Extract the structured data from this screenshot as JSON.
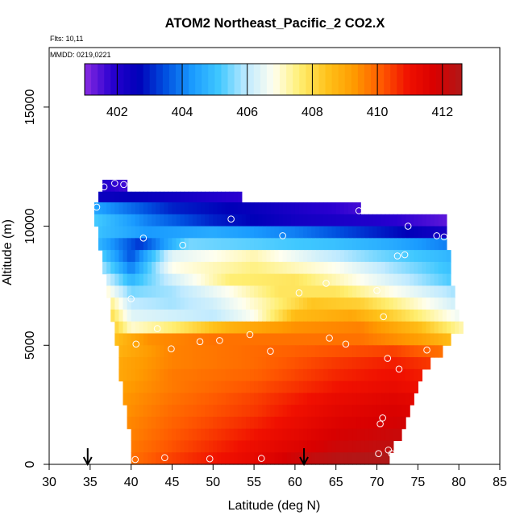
{
  "chart_data": {
    "type": "heatmap",
    "title": "ATOM2 Northeast_Pacific_2 CO2.X",
    "subtitle_flights": "Flts: 10,11",
    "subtitle_dates": "MMDD: 0219,0221",
    "xlabel": "Latitude (deg N)",
    "ylabel": "Altitude (m)",
    "xlim": [
      30,
      85
    ],
    "ylim": [
      0,
      17500
    ],
    "x_ticks": [
      "30",
      "35",
      "40",
      "45",
      "50",
      "55",
      "60",
      "65",
      "70",
      "75",
      "80",
      "85"
    ],
    "x_tick_values": [
      30,
      35,
      40,
      45,
      50,
      55,
      60,
      65,
      70,
      75,
      80,
      85
    ],
    "y_ticks": [
      "0",
      "5000",
      "10000",
      "15000"
    ],
    "y_tick_values": [
      0,
      5000,
      10000,
      15000
    ],
    "colorbar": {
      "range": [
        401.0,
        412.6
      ],
      "ticks": [
        "402",
        "404",
        "406",
        "408",
        "410",
        "412"
      ],
      "tick_values": [
        402,
        404,
        406,
        408,
        410,
        412
      ],
      "colors": [
        "#8a2be2",
        "#2a00d0",
        "#0000b8",
        "#0050e0",
        "#1a9bff",
        "#40c8ff",
        "#bfeaff",
        "#fffff0",
        "#ffee70",
        "#ffc21a",
        "#ff9a00",
        "#ff5a00",
        "#f01000",
        "#d80000",
        "#b01818"
      ]
    },
    "field": {
      "lat_start": 35,
      "lat_step": 0.5,
      "alt_rows": [
        {
          "alt": 11700,
          "lat_range": [
            36.5,
            39.5
          ],
          "values": [
            [
              36.5,
              402.0
            ],
            [
              39.5,
              401.6
            ]
          ]
        },
        {
          "alt": 11200,
          "lat_range": [
            36.0,
            53.5
          ],
          "values": [
            [
              36.0,
              402.4
            ],
            [
              40,
              402.6
            ],
            [
              46,
              402.3
            ],
            [
              53.5,
              401.8
            ]
          ]
        },
        {
          "alt": 10750,
          "lat_range": [
            35.5,
            68.0
          ],
          "values": [
            [
              35.5,
              404.5
            ],
            [
              45,
              403.0
            ],
            [
              55,
              402.5
            ],
            [
              62,
              402.0
            ],
            [
              68,
              401.6
            ]
          ]
        },
        {
          "alt": 10250,
          "lat_range": [
            35.5,
            78.5
          ],
          "values": [
            [
              35.5,
              405.2
            ],
            [
              42,
              404.0
            ],
            [
              50,
              403.0
            ],
            [
              60,
              402.3
            ],
            [
              70,
              402.0
            ],
            [
              78.5,
              401.4
            ]
          ]
        },
        {
          "alt": 9750,
          "lat_range": [
            36.0,
            78.5
          ],
          "values": [
            [
              36.0,
              405.0
            ],
            [
              42,
              404.3
            ],
            [
              50,
              404.6
            ],
            [
              60,
              404.0
            ],
            [
              70,
              403.0
            ],
            [
              78.5,
              402.2
            ]
          ]
        },
        {
          "alt": 9250,
          "lat_range": [
            36.0,
            78.5
          ],
          "values": [
            [
              36.0,
              404.8
            ],
            [
              41,
              403.2
            ],
            [
              47,
              405.5
            ],
            [
              55,
              405.3
            ],
            [
              65,
              405.0
            ],
            [
              72,
              404.6
            ],
            [
              78.5,
              404.0
            ]
          ]
        },
        {
          "alt": 8750,
          "lat_range": [
            36.5,
            79.0
          ],
          "values": [
            [
              36.5,
              405.2
            ],
            [
              40,
              403.5
            ],
            [
              45,
              406.4
            ],
            [
              55,
              407.2
            ],
            [
              63,
              406.2
            ],
            [
              70,
              405.5
            ],
            [
              79,
              404.8
            ]
          ]
        },
        {
          "alt": 8250,
          "lat_range": [
            36.5,
            79.0
          ],
          "values": [
            [
              36.5,
              405.8
            ],
            [
              40,
              404.0
            ],
            [
              45,
              406.8
            ],
            [
              55,
              407.5
            ],
            [
              65,
              406.8
            ],
            [
              72,
              405.8
            ],
            [
              79,
              405.0
            ]
          ]
        },
        {
          "alt": 7750,
          "lat_range": [
            37.0,
            79.0
          ],
          "values": [
            [
              37.0,
              406.2
            ],
            [
              40,
              404.8
            ],
            [
              45,
              406.2
            ],
            [
              52,
              407.6
            ],
            [
              60,
              407.8
            ],
            [
              68,
              406.8
            ],
            [
              75,
              405.8
            ],
            [
              79,
              405.2
            ]
          ]
        },
        {
          "alt": 7250,
          "lat_range": [
            37.0,
            79.5
          ],
          "values": [
            [
              37.0,
              407.0
            ],
            [
              40,
              405.5
            ],
            [
              45,
              405.8
            ],
            [
              52,
              406.8
            ],
            [
              58,
              407.8
            ],
            [
              65,
              407.8
            ],
            [
              72,
              406.8
            ],
            [
              79.5,
              405.8
            ]
          ]
        },
        {
          "alt": 6750,
          "lat_range": [
            37.5,
            79.5
          ],
          "values": [
            [
              37.5,
              407.5
            ],
            [
              40,
              406.0
            ],
            [
              45,
              405.8
            ],
            [
              50,
              406.2
            ],
            [
              56,
              407.2
            ],
            [
              62,
              408.4
            ],
            [
              68,
              408.2
            ],
            [
              75,
              407.0
            ],
            [
              79.5,
              406.2
            ]
          ]
        },
        {
          "alt": 6250,
          "lat_range": [
            37.5,
            80.0
          ],
          "values": [
            [
              37.5,
              408.0
            ],
            [
              40,
              406.4
            ],
            [
              45,
              406.2
            ],
            [
              50,
              406.0
            ],
            [
              55,
              406.8
            ],
            [
              60,
              408.6
            ],
            [
              67,
              409.0
            ],
            [
              73,
              408.0
            ],
            [
              80,
              406.6
            ]
          ]
        },
        {
          "alt": 5750,
          "lat_range": [
            38.0,
            80.5
          ],
          "values": [
            [
              38.0,
              408.2
            ],
            [
              40,
              407.0
            ],
            [
              45,
              407.6
            ],
            [
              52,
              408.8
            ],
            [
              60,
              409.4
            ],
            [
              68,
              409.6
            ],
            [
              75,
              408.6
            ],
            [
              80.5,
              407.2
            ]
          ]
        },
        {
          "alt": 5250,
          "lat_range": [
            38.0,
            79.0
          ],
          "values": [
            [
              38.0,
              408.5
            ],
            [
              42,
              409.4
            ],
            [
              50,
              409.8
            ],
            [
              60,
              409.8
            ],
            [
              68,
              409.8
            ],
            [
              75,
              409.2
            ],
            [
              79,
              408.6
            ]
          ]
        },
        {
          "alt": 4750,
          "lat_range": [
            38.5,
            78.0
          ],
          "values": [
            [
              38.5,
              408.8
            ],
            [
              45,
              409.6
            ],
            [
              55,
              409.9
            ],
            [
              65,
              410.2
            ],
            [
              72,
              410.4
            ],
            [
              78,
              409.8
            ]
          ]
        },
        {
          "alt": 4250,
          "lat_range": [
            38.5,
            76.5
          ],
          "values": [
            [
              38.5,
              409.0
            ],
            [
              45,
              409.6
            ],
            [
              55,
              409.9
            ],
            [
              65,
              410.5
            ],
            [
              72,
              410.8
            ],
            [
              76.5,
              410.5
            ]
          ]
        },
        {
          "alt": 3750,
          "lat_range": [
            38.5,
            75.5
          ],
          "values": [
            [
              38.5,
              409.0
            ],
            [
              45,
              409.7
            ],
            [
              55,
              410.0
            ],
            [
              65,
              410.7
            ],
            [
              72,
              411.0
            ],
            [
              75.5,
              410.8
            ]
          ]
        },
        {
          "alt": 3250,
          "lat_range": [
            39.0,
            75.0
          ],
          "values": [
            [
              39.0,
              409.2
            ],
            [
              45,
              409.7
            ],
            [
              55,
              410.2
            ],
            [
              65,
              410.9
            ],
            [
              72,
              411.2
            ],
            [
              75,
              411.0
            ]
          ]
        },
        {
          "alt": 2750,
          "lat_range": [
            39.0,
            74.5
          ],
          "values": [
            [
              39.0,
              409.3
            ],
            [
              45,
              409.8
            ],
            [
              55,
              410.4
            ],
            [
              65,
              411.2
            ],
            [
              72,
              411.5
            ],
            [
              74.5,
              411.4
            ]
          ]
        },
        {
          "alt": 2250,
          "lat_range": [
            39.5,
            74.0
          ],
          "values": [
            [
              39.5,
              409.4
            ],
            [
              45,
              409.9
            ],
            [
              55,
              410.5
            ],
            [
              65,
              411.4
            ],
            [
              72,
              411.7
            ],
            [
              74,
              411.6
            ]
          ]
        },
        {
          "alt": 1750,
          "lat_range": [
            39.5,
            73.5
          ],
          "values": [
            [
              39.5,
              409.5
            ],
            [
              45,
              410.0
            ],
            [
              55,
              410.7
            ],
            [
              65,
              411.6
            ],
            [
              73.5,
              411.9
            ]
          ]
        },
        {
          "alt": 1250,
          "lat_range": [
            40.0,
            73.0
          ],
          "values": [
            [
              40.0,
              409.6
            ],
            [
              45,
              410.1
            ],
            [
              55,
              410.9
            ],
            [
              65,
              411.8
            ],
            [
              73,
              412.1
            ]
          ]
        },
        {
          "alt": 750,
          "lat_range": [
            40.0,
            72.0
          ],
          "values": [
            [
              40.0,
              409.7
            ],
            [
              45,
              410.2
            ],
            [
              55,
              411.1
            ],
            [
              65,
              412.0
            ],
            [
              72,
              412.3
            ]
          ]
        },
        {
          "alt": 250,
          "lat_range": [
            40.0,
            71.5
          ],
          "values": [
            [
              40.0,
              409.8
            ],
            [
              45,
              410.4
            ],
            [
              55,
              411.3
            ],
            [
              62,
              412.2
            ],
            [
              66,
              412.5
            ],
            [
              71.5,
              412.6
            ]
          ]
        }
      ]
    },
    "observations": [
      {
        "lat": 36.7,
        "alt": 11650
      },
      {
        "lat": 38.0,
        "alt": 11800
      },
      {
        "lat": 39.1,
        "alt": 11750
      },
      {
        "lat": 35.8,
        "alt": 10800
      },
      {
        "lat": 52.2,
        "alt": 10300
      },
      {
        "lat": 67.8,
        "alt": 10650
      },
      {
        "lat": 58.5,
        "alt": 9600
      },
      {
        "lat": 41.5,
        "alt": 9500
      },
      {
        "lat": 73.8,
        "alt": 10000
      },
      {
        "lat": 77.3,
        "alt": 9600
      },
      {
        "lat": 78.2,
        "alt": 9550
      },
      {
        "lat": 46.3,
        "alt": 9200
      },
      {
        "lat": 73.4,
        "alt": 8800
      },
      {
        "lat": 72.5,
        "alt": 8750
      },
      {
        "lat": 63.8,
        "alt": 7600
      },
      {
        "lat": 60.5,
        "alt": 7200
      },
      {
        "lat": 70.0,
        "alt": 7300
      },
      {
        "lat": 40.0,
        "alt": 6950
      },
      {
        "lat": 70.8,
        "alt": 6200
      },
      {
        "lat": 43.2,
        "alt": 5700
      },
      {
        "lat": 54.5,
        "alt": 5450
      },
      {
        "lat": 40.6,
        "alt": 5050
      },
      {
        "lat": 44.9,
        "alt": 4850
      },
      {
        "lat": 48.4,
        "alt": 5150
      },
      {
        "lat": 50.8,
        "alt": 5200
      },
      {
        "lat": 57.0,
        "alt": 4750
      },
      {
        "lat": 64.2,
        "alt": 5300
      },
      {
        "lat": 66.2,
        "alt": 5050
      },
      {
        "lat": 71.3,
        "alt": 4450
      },
      {
        "lat": 76.1,
        "alt": 4800
      },
      {
        "lat": 72.7,
        "alt": 4000
      },
      {
        "lat": 70.7,
        "alt": 1950
      },
      {
        "lat": 70.4,
        "alt": 1700
      },
      {
        "lat": 40.5,
        "alt": 200
      },
      {
        "lat": 44.1,
        "alt": 280
      },
      {
        "lat": 49.6,
        "alt": 230
      },
      {
        "lat": 55.9,
        "alt": 250
      },
      {
        "lat": 70.2,
        "alt": 450
      },
      {
        "lat": 71.4,
        "alt": 600
      },
      {
        "lat": 71.8,
        "alt": 450
      }
    ],
    "arrows": [
      {
        "lat": 34.7
      },
      {
        "lat": 61.1
      }
    ],
    "grid": false,
    "legend": "top colorbar"
  }
}
